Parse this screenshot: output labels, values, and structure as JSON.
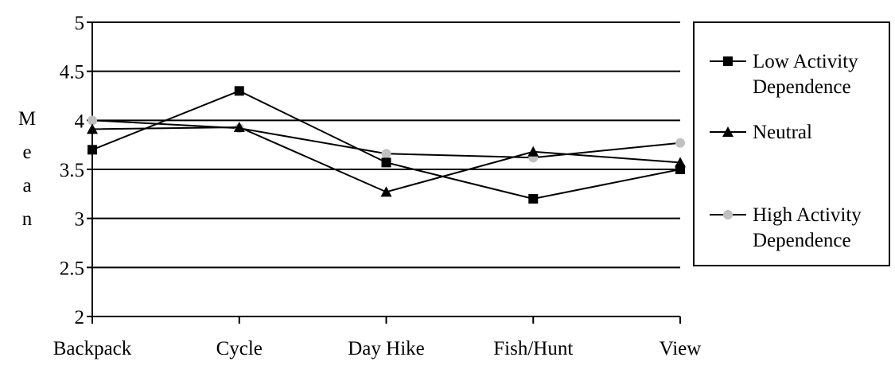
{
  "chart_data": {
    "type": "line",
    "categories": [
      "Backpack",
      "Cycle",
      "Day Hike",
      "Fish/Hunt",
      "View"
    ],
    "ylabel_letters": [
      "M",
      "e",
      "a",
      "n"
    ],
    "ylim": [
      2,
      5
    ],
    "yticks": [
      "2",
      "2.5",
      "3",
      "3.5",
      "4",
      "4.5",
      "5"
    ],
    "grid": true,
    "legend_position": "right",
    "series": [
      {
        "name_lines": [
          "Low Activity",
          "Dependence"
        ],
        "marker": "square",
        "color": "#000000",
        "values": [
          3.7,
          4.3,
          3.57,
          3.2,
          3.5
        ]
      },
      {
        "name_lines": [
          "Neutral"
        ],
        "marker": "triangle",
        "color": "#000000",
        "values": [
          3.91,
          3.93,
          3.27,
          3.68,
          3.57
        ]
      },
      {
        "name_lines": [
          "High Activity",
          "Dependence"
        ],
        "marker": "circle",
        "color": "#c0c0c0",
        "values": [
          4.0,
          3.92,
          3.66,
          3.62,
          3.77
        ]
      }
    ]
  }
}
